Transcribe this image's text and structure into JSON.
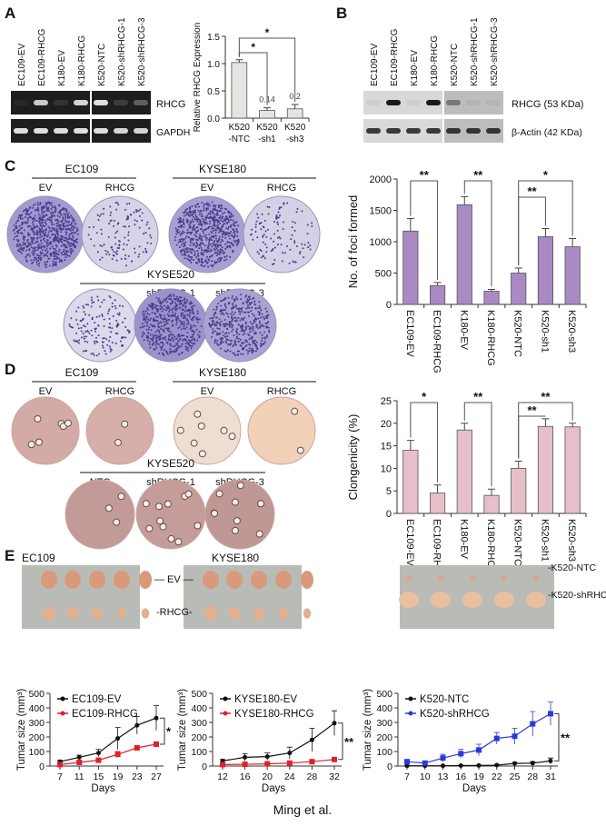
{
  "panels": {
    "a": "A",
    "b": "B",
    "c": "C",
    "d": "D",
    "e": "E"
  },
  "footer": "Ming et al.",
  "panel_a": {
    "lanes": [
      "EC109-EV",
      "EC109-RHCG",
      "K180-EV",
      "K180-RHCG",
      "K520-NTC",
      "K520-shRHCG-1",
      "K520-shRHCG-3"
    ],
    "rows": [
      "RHCG",
      "GAPDH"
    ],
    "band_intensity": {
      "RHCG": [
        0.05,
        0.8,
        0.1,
        0.85,
        0.9,
        0.15,
        0.3
      ],
      "GAPDH": [
        0.9,
        0.9,
        0.9,
        0.9,
        0.9,
        0.85,
        0.85
      ]
    }
  },
  "panel_b": {
    "lanes": [
      "EC109-EV",
      "EC109-RHCG",
      "K180-EV",
      "K180-RHCG",
      "K520-NTC",
      "K520-shRHCG-1",
      "K520-shRHCG-3"
    ],
    "rows": [
      "RHCG (53 KDa)",
      "β-Actin (42 KDa)"
    ],
    "band_intensity": {
      "RHCG": [
        0.05,
        0.95,
        0.05,
        0.95,
        0.4,
        0.05,
        0.05
      ],
      "Actin": [
        0.8,
        0.8,
        0.8,
        0.8,
        0.8,
        0.8,
        0.8
      ]
    }
  },
  "panel_c": {
    "groups": [
      {
        "title": "EC109",
        "plates": [
          "EV",
          "RHCG"
        ]
      },
      {
        "title": "KYSE180",
        "plates": [
          "EV",
          "RHCG"
        ]
      },
      {
        "title": "KYSE520",
        "plates": [
          "NTC",
          "shRHCG-1",
          "shRHCG-3"
        ]
      }
    ]
  },
  "panel_d": {
    "groups": [
      {
        "title": "EC109",
        "plates": [
          "EV",
          "RHCG"
        ]
      },
      {
        "title": "KYSE180",
        "plates": [
          "EV",
          "RHCG"
        ]
      },
      {
        "title": "KYSE520",
        "plates": [
          "NTC",
          "shRHCG-1",
          "shRHCG-3"
        ]
      }
    ]
  },
  "panel_e": {
    "photo_labels": [
      "EC109",
      "KYSE180"
    ],
    "row_labels": [
      "— EV —",
      "-RHCG-",
      "-K520-NTC",
      "-K520-shRHCG"
    ]
  },
  "colors": {
    "bar_a": "#e4e4e0",
    "bar_c": "#a98ac4",
    "bar_d": "#e7bfc8",
    "red": "#e0202a",
    "blue": "#2a3ad8",
    "black": "#111111"
  },
  "chart_data": [
    {
      "id": "a",
      "type": "bar",
      "ylabel": "Relative RHCG Expression",
      "ylim": [
        0,
        1.5
      ],
      "yticks": [
        "0.0",
        "0.5",
        "1.0",
        "1.5"
      ],
      "categories": [
        "K520 -NTC",
        "K520 -sh1",
        "K520 -sh3"
      ],
      "cat_lines": [
        [
          "K520",
          "-NTC"
        ],
        [
          "K520",
          "-sh1"
        ],
        [
          "K520",
          "-sh3"
        ]
      ],
      "values": [
        1.02,
        0.14,
        0.17
      ],
      "errors": [
        0.05,
        0.05,
        0.08
      ],
      "data_labels": [
        "",
        "0.14",
        "0.2"
      ],
      "brackets": [
        {
          "from": 0,
          "to": 1,
          "label": "*"
        },
        {
          "from": 0,
          "to": 2,
          "label": "*"
        }
      ]
    },
    {
      "id": "c",
      "type": "bar",
      "ylabel": "No. of foci formed",
      "ylim": [
        0,
        2000
      ],
      "yticks": [
        "0",
        "500",
        "1000",
        "1500",
        "2000"
      ],
      "categories": [
        "EC109-EV",
        "EC109-RHCG",
        "K180-EV",
        "K180-RHCG",
        "K520-NTC",
        "K520-sh1",
        "K520-sh3"
      ],
      "values": [
        1170,
        300,
        1590,
        210,
        500,
        1080,
        920
      ],
      "errors": [
        200,
        50,
        130,
        30,
        80,
        130,
        130
      ],
      "brackets": [
        {
          "from": 0,
          "to": 1,
          "label": "**"
        },
        {
          "from": 2,
          "to": 3,
          "label": "**"
        },
        {
          "from": 4,
          "to": 5,
          "label": "**"
        },
        {
          "from": 4,
          "to": 6,
          "label": "*"
        }
      ]
    },
    {
      "id": "d",
      "type": "bar",
      "ylabel": "Clongenicity (%)",
      "ylim": [
        0,
        25
      ],
      "yticks": [
        "0",
        "5",
        "10",
        "15",
        "20",
        "25"
      ],
      "categories": [
        "EC109-EV",
        "EC109-RHCG",
        "K180-EV",
        "K180-RHCG",
        "K520-NTC",
        "K520-sh1",
        "K520-sh3"
      ],
      "values": [
        14,
        4.5,
        18.5,
        4,
        10,
        19.3,
        19.2
      ],
      "errors": [
        2.2,
        1.8,
        1.5,
        1.4,
        1.6,
        1.7,
        0.8
      ],
      "brackets": [
        {
          "from": 0,
          "to": 1,
          "label": "*"
        },
        {
          "from": 2,
          "to": 3,
          "label": "**"
        },
        {
          "from": 4,
          "to": 5,
          "label": "**"
        },
        {
          "from": 4,
          "to": 6,
          "label": "**"
        }
      ]
    },
    {
      "id": "e1",
      "type": "line",
      "xlabel": "Days",
      "ylabel": "Tumar size (mm³)",
      "ylim": [
        0,
        500
      ],
      "yticks": [
        "0",
        "100",
        "200",
        "300",
        "400",
        "500"
      ],
      "x": [
        7,
        11,
        15,
        19,
        23,
        27
      ],
      "significance": "*",
      "series": [
        {
          "name": "EC109-EV",
          "color": "black",
          "values": [
            30,
            60,
            90,
            190,
            280,
            330
          ],
          "errors": [
            10,
            15,
            25,
            75,
            60,
            85
          ]
        },
        {
          "name": "EC109-RHCG",
          "color": "red",
          "values": [
            10,
            25,
            40,
            80,
            125,
            150
          ],
          "errors": [
            5,
            8,
            8,
            20,
            15,
            15
          ]
        }
      ]
    },
    {
      "id": "e2",
      "type": "line",
      "xlabel": "Days",
      "ylabel": "Tumar size (mm³)",
      "ylim": [
        0,
        500
      ],
      "yticks": [
        "0",
        "100",
        "200",
        "300",
        "400",
        "500"
      ],
      "x": [
        12,
        16,
        20,
        24,
        28,
        32
      ],
      "significance": "**",
      "series": [
        {
          "name": "KYSE180-EV",
          "color": "black",
          "values": [
            35,
            60,
            65,
            90,
            180,
            295
          ],
          "errors": [
            10,
            25,
            25,
            40,
            80,
            85
          ]
        },
        {
          "name": "KYSE180-RHCG",
          "color": "red",
          "values": [
            10,
            12,
            15,
            20,
            30,
            45
          ],
          "errors": [
            5,
            5,
            5,
            5,
            8,
            15
          ]
        }
      ]
    },
    {
      "id": "e3",
      "type": "line",
      "xlabel": "Days",
      "ylabel": "Tumar size (mm³)",
      "ylim": [
        0,
        500
      ],
      "yticks": [
        "0",
        "100",
        "200",
        "300",
        "400",
        "500"
      ],
      "x": [
        7,
        10,
        13,
        16,
        19,
        22,
        25,
        28,
        31
      ],
      "significance": "**",
      "series": [
        {
          "name": "K520-NTC",
          "color": "black",
          "values": [
            2,
            2,
            2,
            3,
            4,
            6,
            18,
            20,
            35
          ],
          "errors": [
            2,
            2,
            2,
            2,
            3,
            5,
            8,
            10,
            20
          ]
        },
        {
          "name": "K520-shRHCG",
          "color": "blue",
          "values": [
            30,
            20,
            55,
            85,
            110,
            190,
            205,
            290,
            360
          ],
          "errors": [
            8,
            10,
            25,
            30,
            40,
            40,
            55,
            85,
            80
          ]
        }
      ]
    }
  ]
}
